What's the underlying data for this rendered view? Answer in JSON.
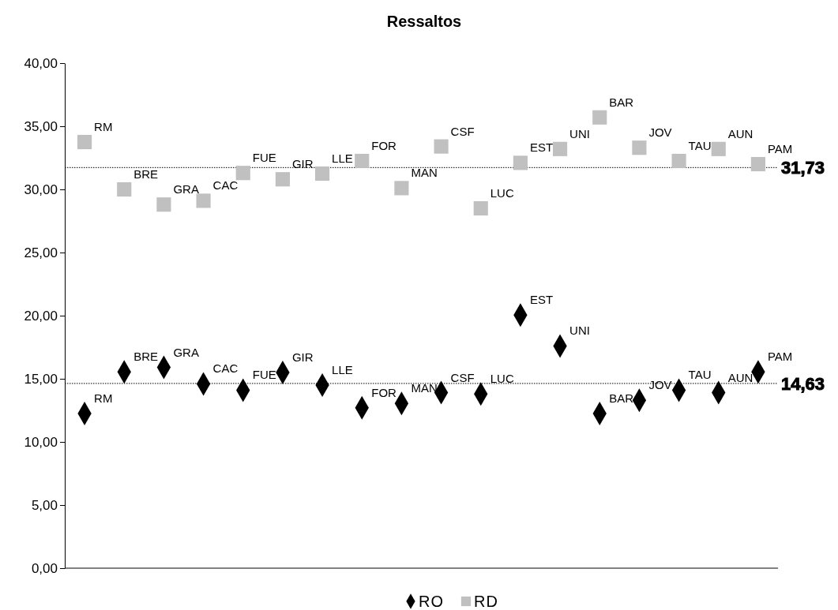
{
  "chart_data": {
    "type": "scatter",
    "title": "Ressaltos",
    "categories": [
      null,
      null,
      null,
      null,
      null,
      null,
      null,
      null,
      null,
      null,
      null,
      null,
      null,
      null,
      null,
      null,
      null,
      null
    ],
    "series": [
      {
        "name": "RO",
        "color": "#000000",
        "marker": "diamond",
        "values": [
          12.25,
          15.55,
          15.9,
          14.6,
          14.1,
          15.5,
          14.5,
          12.7,
          13.05,
          13.9,
          13.8,
          20.05,
          17.6,
          12.25,
          13.3,
          14.1,
          13.9,
          15.55
        ],
        "value_labels": [
          "RM",
          "BRE",
          "GRA",
          "CAC",
          "FUE",
          "GIR",
          "LLE",
          "FOR",
          "MAN",
          "CSF",
          "LUC",
          "EST",
          "UNI",
          "BAR",
          "JOV",
          "TAU",
          "AUN",
          "PAM"
        ]
      },
      {
        "name": "RD",
        "color": "#c0c0c0",
        "marker": "square",
        "values": [
          33.75,
          30.0,
          28.8,
          29.1,
          31.3,
          30.8,
          31.25,
          32.25,
          30.1,
          33.4,
          28.5,
          32.1,
          33.2,
          35.7,
          33.3,
          32.25,
          33.2,
          32.0
        ],
        "value_labels": [
          "RM",
          "BRE",
          "GRA",
          "CAC",
          "FUE",
          "GIR",
          "LLE",
          "FOR",
          "MAN",
          "CSF",
          "LUC",
          "EST",
          "UNI",
          "BAR",
          "JOV",
          "TAU",
          "AUN",
          "PAM"
        ]
      }
    ],
    "ylim": [
      0,
      40
    ],
    "yticks": [
      {
        "value": 0,
        "label": "0,00"
      },
      {
        "value": 5,
        "label": "5,00"
      },
      {
        "value": 10,
        "label": "10,00"
      },
      {
        "value": 15,
        "label": "15,00"
      },
      {
        "value": 20,
        "label": "20,00"
      },
      {
        "value": 25,
        "label": "25,00"
      },
      {
        "value": 30,
        "label": "30,00"
      },
      {
        "value": 35,
        "label": "35,00"
      },
      {
        "value": 40,
        "label": "40,00"
      }
    ],
    "ref_lines": [
      {
        "axis": "y",
        "value": 31.73,
        "label": "31,73",
        "line_style": "dotted",
        "color": "#000000"
      },
      {
        "axis": "y",
        "value": 14.63,
        "label": "14,63",
        "line_style": "dotted",
        "color": "#000000"
      }
    ],
    "grid": false,
    "legend": "bottom"
  }
}
